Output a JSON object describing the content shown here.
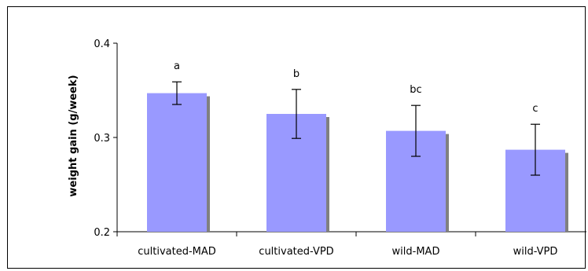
{
  "chart_data": {
    "type": "bar",
    "title": "",
    "xlabel": "",
    "ylabel": "weight gain (g/week)",
    "ylim": [
      0.2,
      0.4
    ],
    "yticks": [
      0.2,
      0.3,
      0.4
    ],
    "ytick_labels": [
      "0.2",
      "0.3",
      "0.4"
    ],
    "categories": [
      "cultivated-MAD",
      "cultivated-VPD",
      "wild-MAD",
      "wild-VPD"
    ],
    "values": [
      0.347,
      0.325,
      0.307,
      0.287
    ],
    "error": [
      0.012,
      0.026,
      0.027,
      0.027
    ],
    "significance_letters": [
      "a",
      "b",
      "bc",
      "c"
    ],
    "grid": false,
    "legend": "none",
    "colors": {
      "bar": "#9999ff",
      "shadow": "#808080",
      "axis": "#000000"
    }
  }
}
